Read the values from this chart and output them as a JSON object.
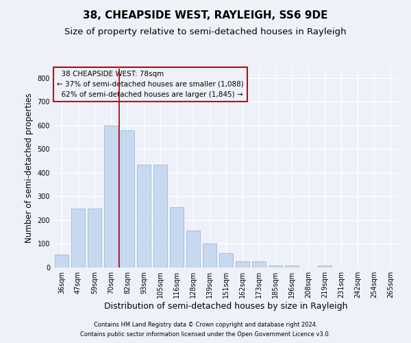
{
  "title": "38, CHEAPSIDE WEST, RAYLEIGH, SS6 9DE",
  "subtitle": "Size of property relative to semi-detached houses in Rayleigh",
  "xlabel": "Distribution of semi-detached houses by size in Rayleigh",
  "ylabel": "Number of semi-detached properties",
  "footnote1": "Contains HM Land Registry data © Crown copyright and database right 2024.",
  "footnote2": "Contains public sector information licensed under the Open Government Licence v3.0.",
  "categories": [
    "36sqm",
    "47sqm",
    "59sqm",
    "70sqm",
    "82sqm",
    "93sqm",
    "105sqm",
    "116sqm",
    "128sqm",
    "139sqm",
    "151sqm",
    "162sqm",
    "173sqm",
    "185sqm",
    "196sqm",
    "208sqm",
    "219sqm",
    "231sqm",
    "242sqm",
    "254sqm",
    "265sqm"
  ],
  "values": [
    55,
    250,
    250,
    600,
    580,
    435,
    435,
    255,
    155,
    100,
    60,
    25,
    25,
    10,
    10,
    0,
    10,
    0,
    0,
    0,
    0
  ],
  "bar_color": "#c6d9f0",
  "bar_edge_color": "#a0b8d8",
  "property_line_index": 4,
  "property_label": "38 CHEAPSIDE WEST: 78sqm",
  "smaller_pct": "37%",
  "smaller_count": "1,088",
  "larger_pct": "62%",
  "larger_count": "1,845",
  "line_color": "#cc0000",
  "box_edge_color": "#cc0000",
  "ylim": [
    0,
    840
  ],
  "yticks": [
    0,
    100,
    200,
    300,
    400,
    500,
    600,
    700,
    800
  ],
  "background_color": "#eef2f8",
  "grid_color": "#ffffff",
  "title_fontsize": 11,
  "subtitle_fontsize": 9.5,
  "tick_fontsize": 7,
  "ylabel_fontsize": 8.5,
  "xlabel_fontsize": 9,
  "annot_fontsize": 7.5,
  "footnote_fontsize": 6
}
